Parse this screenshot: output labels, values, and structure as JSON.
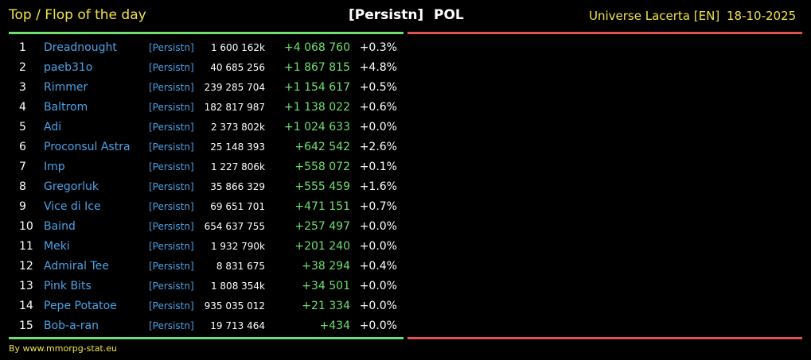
{
  "header": {
    "title": "Top / Flop of the day",
    "alliance": "[Persistn]",
    "country": "POL",
    "universe": "Universe Lacerta [EN]",
    "date": "18-10-2025"
  },
  "table": {
    "rows": [
      [
        "1",
        "Dreadnought",
        "[Persistn]",
        "1 600 162k",
        "+4 068 760",
        "+0.3%"
      ],
      [
        "2",
        "paeb31o",
        "[Persistn]",
        "40 685 256",
        "+1 867 815",
        "+4.8%"
      ],
      [
        "3",
        "Rimmer",
        "[Persistn]",
        "239 285 704",
        "+1 154 617",
        "+0.5%"
      ],
      [
        "4",
        "Baltrom",
        "[Persistn]",
        "182 817 987",
        "+1 138 022",
        "+0.6%"
      ],
      [
        "5",
        "Adi",
        "[Persistn]",
        "2 373 802k",
        "+1 024 633",
        "+0.0%"
      ],
      [
        "6",
        "Proconsul Astra",
        "[Persistn]",
        "25 148 393",
        "+642 542",
        "+2.6%"
      ],
      [
        "7",
        "Imp",
        "[Persistn]",
        "1 227 806k",
        "+558 072",
        "+0.1%"
      ],
      [
        "8",
        "Gregorluk",
        "[Persistn]",
        "35 866 329",
        "+555 459",
        "+1.6%"
      ],
      [
        "9",
        "Vice di Ice",
        "[Persistn]",
        "69 651 701",
        "+471 151",
        "+0.7%"
      ],
      [
        "10",
        "Baind",
        "[Persistn]",
        "654 637 755",
        "+257 497",
        "+0.0%"
      ],
      [
        "11",
        "Meki",
        "[Persistn]",
        "1 932 790k",
        "+201 240",
        "+0.0%"
      ],
      [
        "12",
        "Admiral Tee",
        "[Persistn]",
        "8 831 675",
        "+38 294",
        "+0.4%"
      ],
      [
        "13",
        "Pink Bits",
        "[Persistn]",
        "1 808 354k",
        "+34 501",
        "+0.0%"
      ],
      [
        "14",
        "Pepe Potatoe",
        "[Persistn]",
        "935 035 012",
        "+21 334",
        "+0.0%"
      ],
      [
        "15",
        "Bob-a-ran",
        "[Persistn]",
        "19 713 464",
        "+434",
        "+0.0%"
      ]
    ]
  },
  "footer": {
    "text": "By www.mmorpg-stat.eu"
  }
}
